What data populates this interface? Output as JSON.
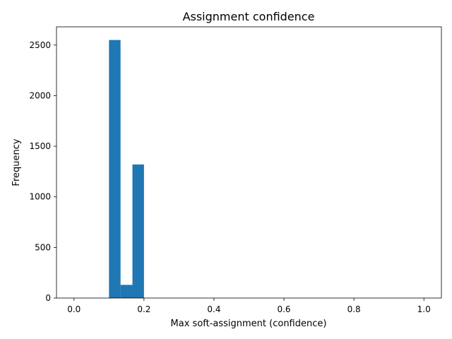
{
  "chart_data": {
    "type": "bar",
    "title": "Assignment confidence",
    "xlabel": "Max soft-assignment (confidence)",
    "ylabel": "Frequency",
    "xlim": [
      -0.05,
      1.05
    ],
    "ylim": [
      0,
      2680
    ],
    "xticks": [
      0.0,
      0.2,
      0.4,
      0.6,
      0.8,
      1.0
    ],
    "xtick_labels": [
      "0.0",
      "0.2",
      "0.4",
      "0.6",
      "0.8",
      "1.0"
    ],
    "yticks": [
      0,
      500,
      1000,
      1500,
      2000,
      2500
    ],
    "ytick_labels": [
      "0",
      "500",
      "1000",
      "1500",
      "2000",
      "2500"
    ],
    "bin_width": 0.033,
    "bins": [
      {
        "x_start": 0.1,
        "x_end": 0.133,
        "value": 2550
      },
      {
        "x_start": 0.133,
        "x_end": 0.167,
        "value": 130
      },
      {
        "x_start": 0.167,
        "x_end": 0.2,
        "value": 1320
      }
    ],
    "bar_color": "#1f77b4",
    "grid": false,
    "legend": "none"
  }
}
